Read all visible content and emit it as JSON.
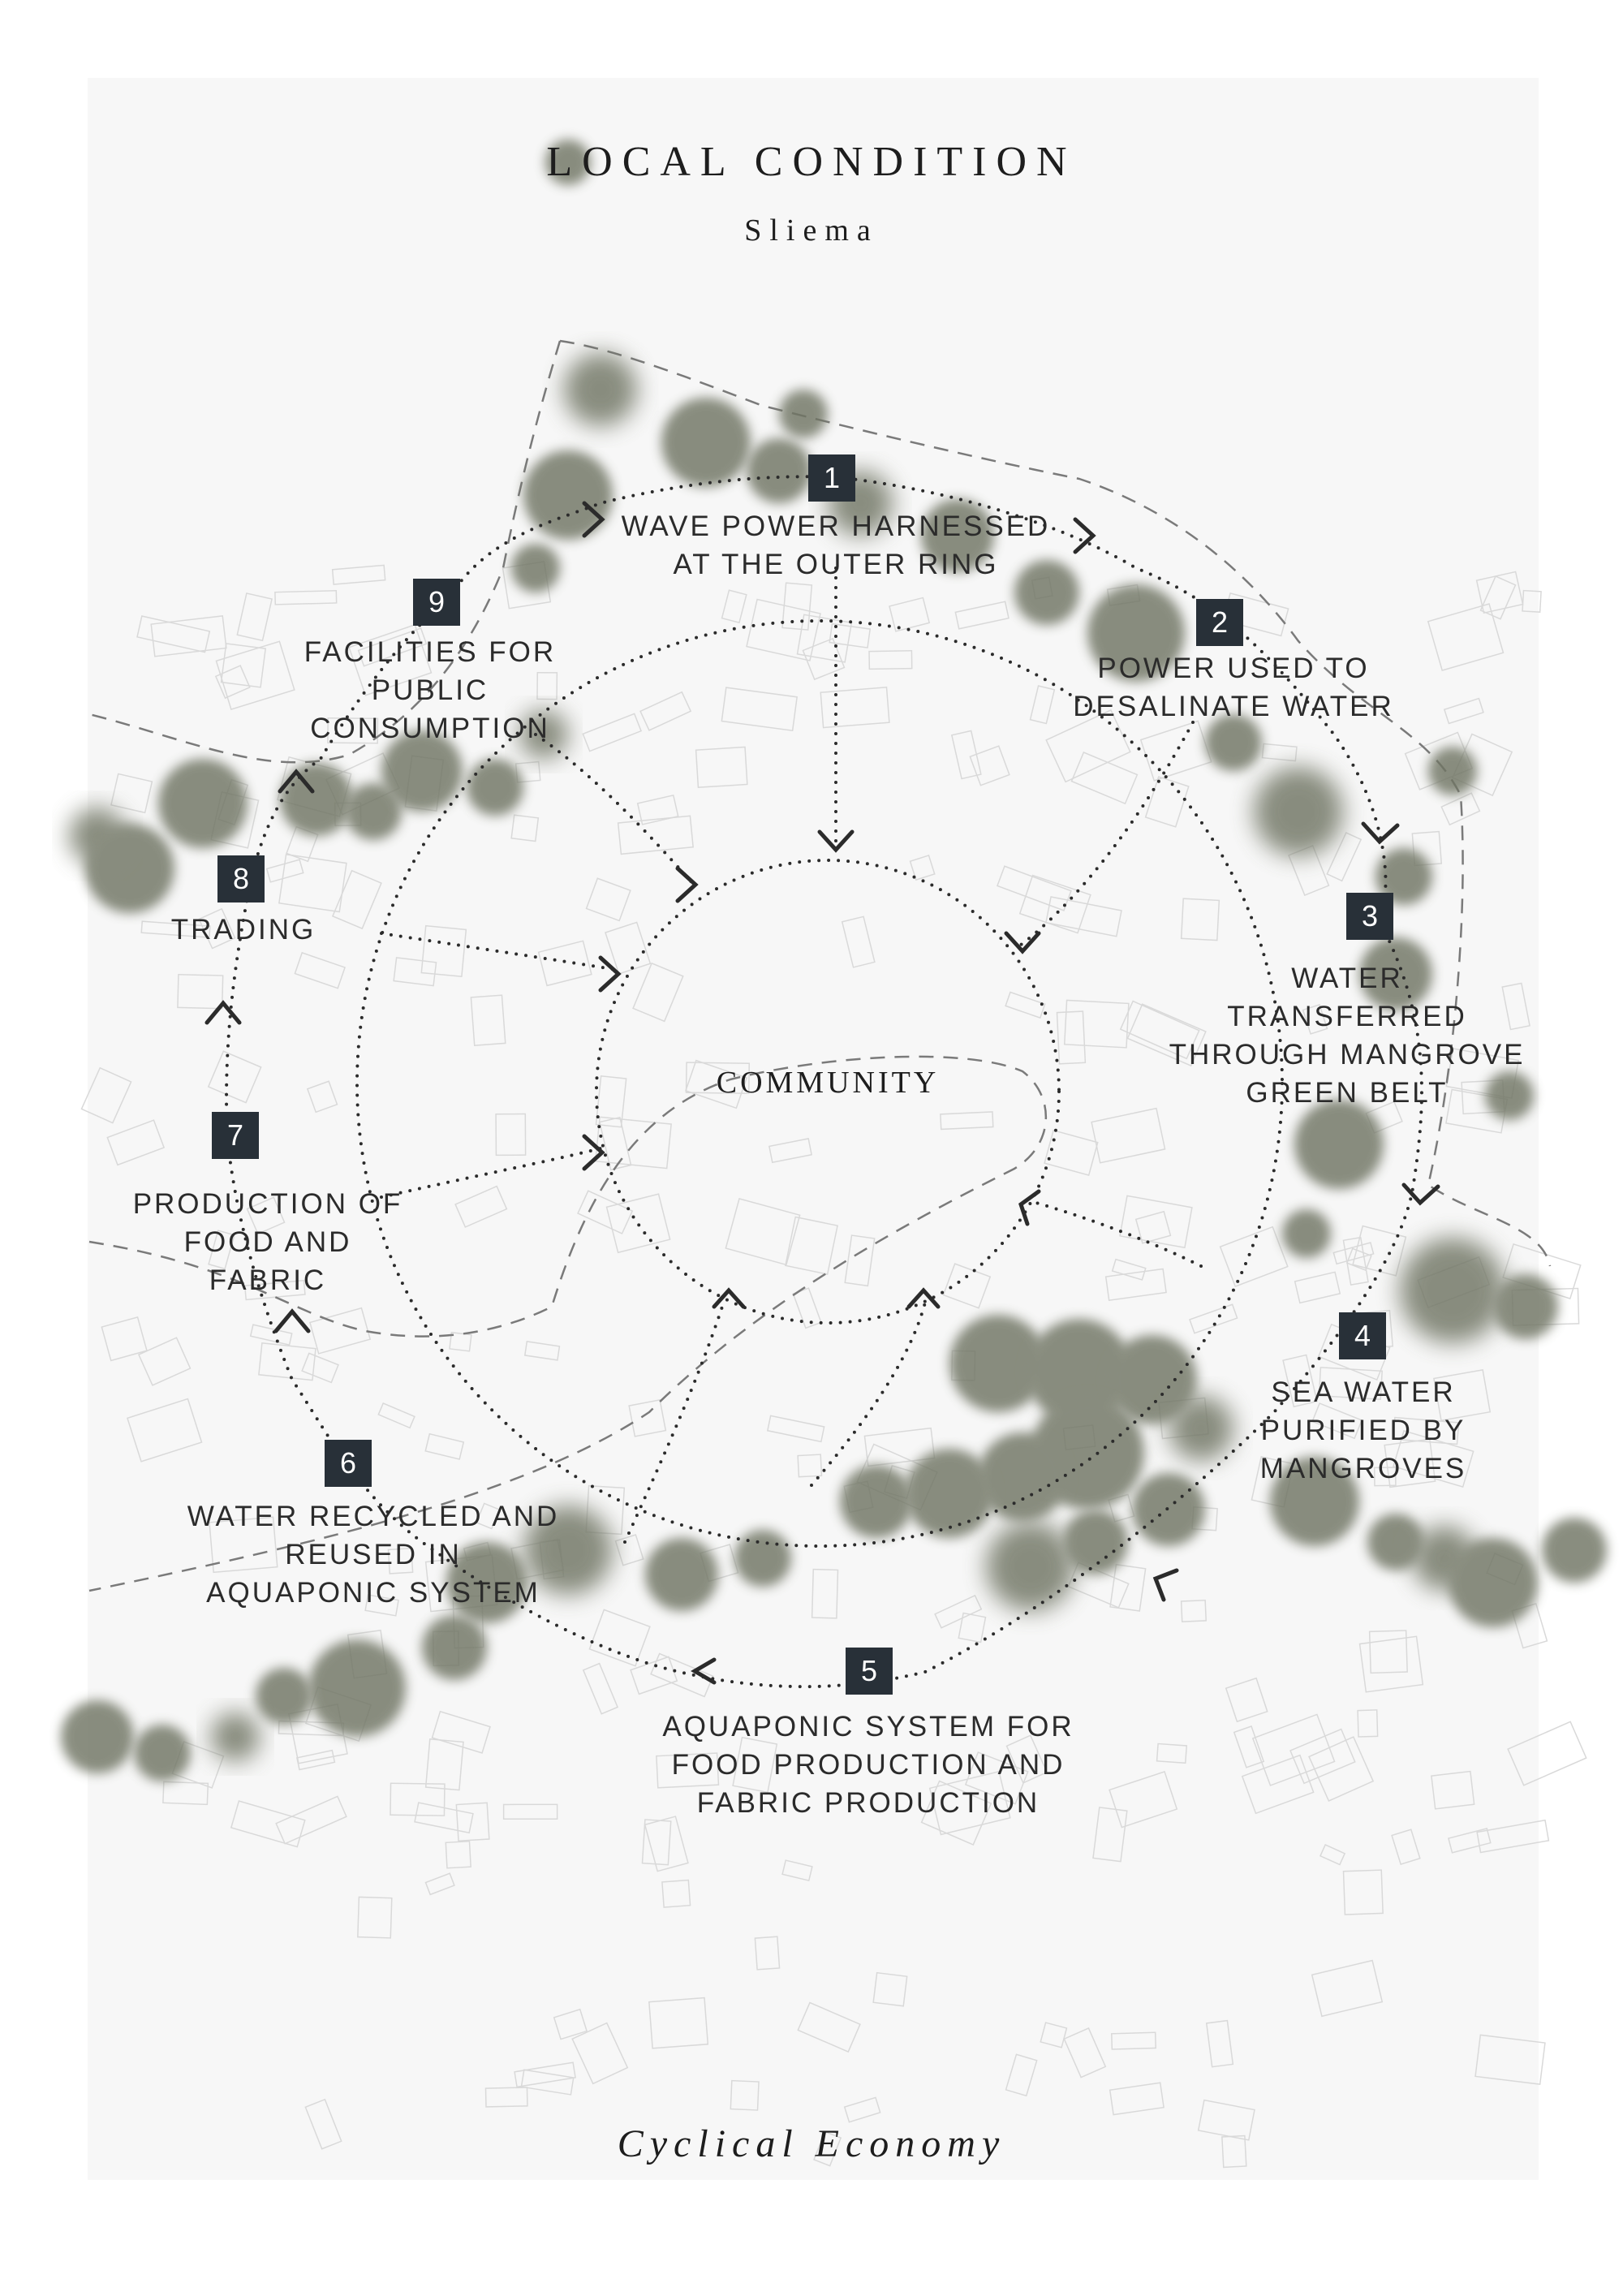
{
  "header": {
    "title": "LOCAL CONDITION",
    "subtitle": "Sliema"
  },
  "center_label": "COMMUNITY",
  "footer": "Cyclical Economy",
  "colors": {
    "badge": "#283038",
    "tree_canopy": "#6f7563",
    "background": "#f7f7f7",
    "dotted_path": "#333333"
  },
  "steps": [
    {
      "number": "1",
      "label": "WAVE POWER HARNESSED\nAT THE OUTER RING"
    },
    {
      "number": "2",
      "label": "POWER USED TO\nDESALINATE WATER"
    },
    {
      "number": "3",
      "label": "WATER\nTRANSFERRED\nTHROUGH MANGROVE\nGREEN BELT"
    },
    {
      "number": "4",
      "label": "SEA WATER\nPURIFIED BY\nMANGROVES"
    },
    {
      "number": "5",
      "label": "AQUAPONIC SYSTEM FOR\nFOOD PRODUCTION AND\nFABRIC PRODUCTION"
    },
    {
      "number": "6",
      "label": "WATER RECYCLED AND\nREUSED IN\nAQUAPONIC SYSTEM"
    },
    {
      "number": "7",
      "label": "PRODUCTION OF\nFOOD AND\nFABRIC"
    },
    {
      "number": "8",
      "label": "TRADING"
    },
    {
      "number": "9",
      "label": "FACILITIES FOR\nPUBLIC\nCONSUMPTION"
    }
  ]
}
